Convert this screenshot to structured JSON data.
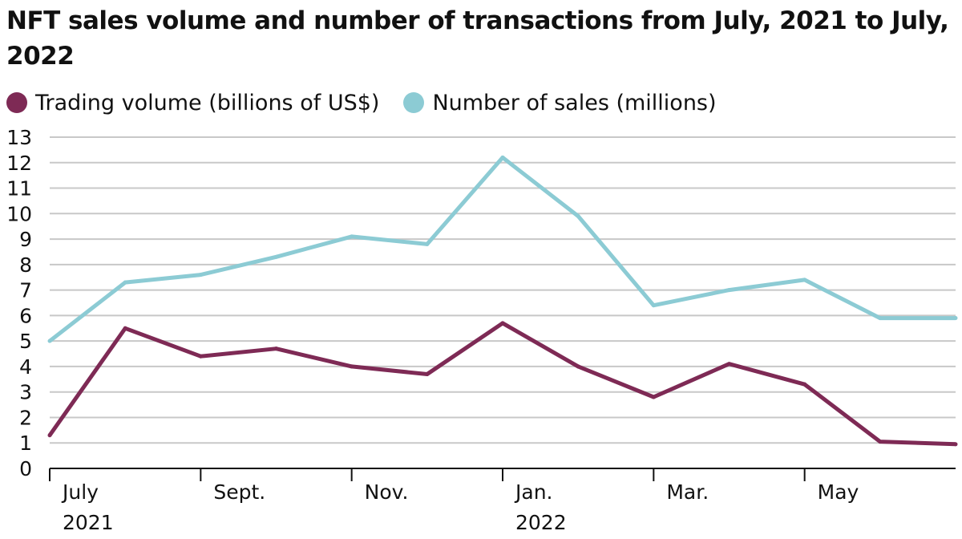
{
  "title": "NFT sales volume and number of transactions from July, 2021 to July, 2022",
  "colors": {
    "volume": "#7e2a55",
    "sales": "#8ccbd4",
    "grid": "#c8c8c8",
    "axis": "#111111"
  },
  "chart_data": {
    "type": "line",
    "title": "NFT sales volume and number of transactions from July, 2021 to July, 2022",
    "x": [
      "Jul 2021",
      "Aug 2021",
      "Sep 2021",
      "Oct 2021",
      "Nov 2021",
      "Dec 2021",
      "Jan 2022",
      "Feb 2022",
      "Mar 2022",
      "Apr 2022",
      "May 2022",
      "Jun 2022",
      "Jul 2022"
    ],
    "x_tick_labels": [
      {
        "x": "Jul 2021",
        "line1": "July",
        "line2": "2021"
      },
      {
        "x": "Sep 2021",
        "line1": "Sept.",
        "line2": ""
      },
      {
        "x": "Nov 2021",
        "line1": "Nov.",
        "line2": ""
      },
      {
        "x": "Jan 2022",
        "line1": "Jan.",
        "line2": "2022"
      },
      {
        "x": "Mar 2022",
        "line1": "Mar.",
        "line2": ""
      },
      {
        "x": "May 2022",
        "line1": "May",
        "line2": ""
      }
    ],
    "ylim": [
      0,
      13
    ],
    "y_ticks": [
      0,
      1,
      2,
      3,
      4,
      5,
      6,
      7,
      8,
      9,
      10,
      11,
      12,
      13
    ],
    "grid": true,
    "legend_position": "top-left",
    "series": [
      {
        "name": "Trading volume (billions of US$)",
        "color": "#7e2a55",
        "values": [
          1.3,
          5.5,
          4.4,
          4.7,
          4.0,
          3.7,
          5.7,
          4.0,
          2.8,
          4.1,
          3.3,
          1.05,
          0.95
        ]
      },
      {
        "name": "Number of sales (millions)",
        "color": "#8ccbd4",
        "values": [
          5.0,
          7.3,
          7.6,
          8.3,
          9.1,
          8.8,
          12.2,
          9.9,
          6.4,
          7.0,
          7.4,
          5.9,
          5.9
        ]
      }
    ]
  }
}
